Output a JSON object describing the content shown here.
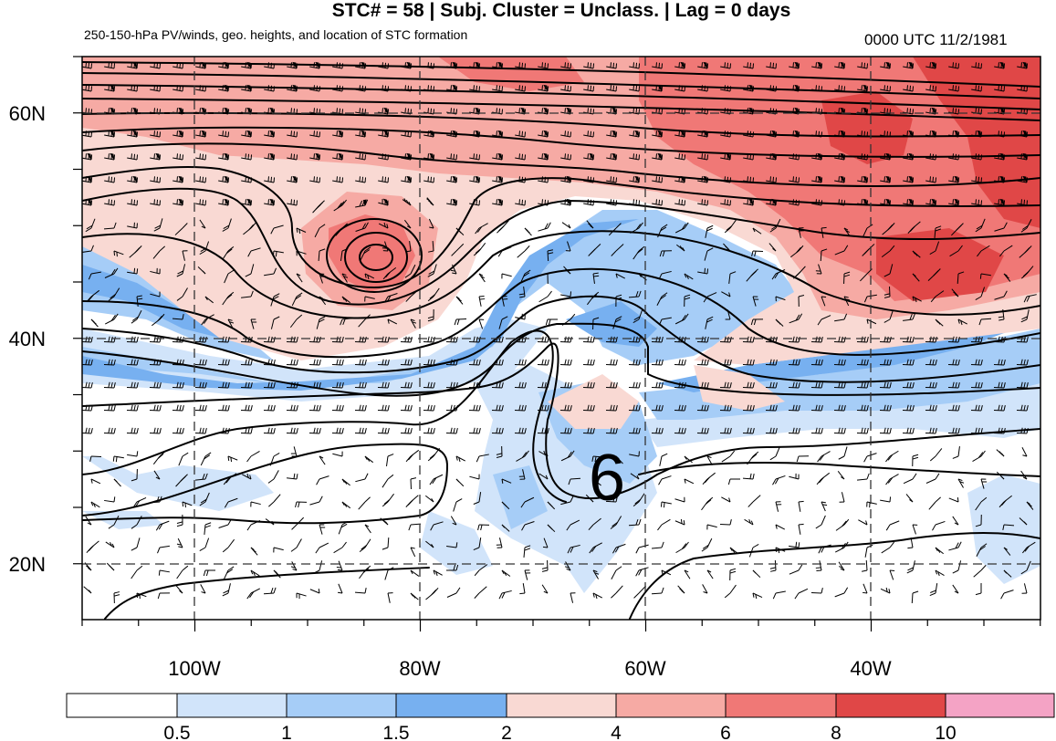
{
  "title": "STC# = 58 | Subj. Cluster = Unclass. | Lag = 0 days",
  "subtitle_left": "250-150-hPa PV/winds, geo. heights, and location of STC formation",
  "subtitle_right": "0000 UTC  11/2/1981",
  "map": {
    "lat_labels": [
      "60N",
      "40N",
      "20N"
    ],
    "lon_labels": [
      "100W",
      "80W",
      "60W",
      "40W"
    ],
    "marker_symbol": "6",
    "colors": {
      "c_lt_blue": "#d1e4fa",
      "c_blue1": "#a6cdf7",
      "c_blue2": "#77b0f0",
      "c_pink1": "#f9d9d3",
      "c_pink2": "#f6aaa4",
      "c_red1": "#f07876",
      "c_red2": "#e04747"
    }
  },
  "colorbar": {
    "labels": [
      "0.5",
      "1",
      "1.5",
      "2",
      "4",
      "6",
      "8",
      "10"
    ],
    "colors": [
      "#ffffff",
      "#d1e4fa",
      "#a6cdf7",
      "#77b0f0",
      "#f9d9d3",
      "#f6aaa4",
      "#f07876",
      "#e04747",
      "#f4a3c5"
    ]
  }
}
